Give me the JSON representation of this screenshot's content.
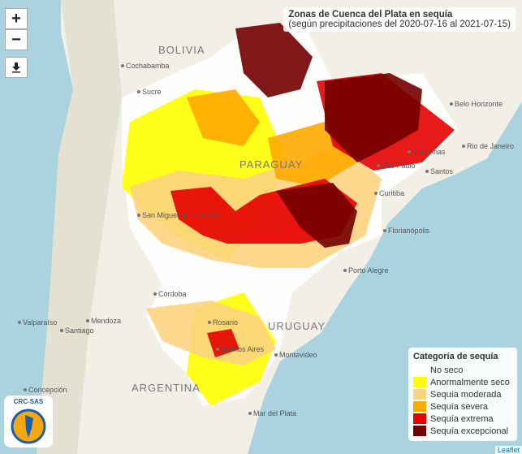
{
  "title": "Zonas de Cuenca del Plata en sequía",
  "subtitle": "(según precipitaciones del 2020-07-16 al 2021-07-15)",
  "controls": {
    "zoom_in": "+",
    "zoom_out": "−"
  },
  "legend": {
    "title": "Categoría de sequía",
    "items": [
      {
        "label": "No seco",
        "color": "#ffffff"
      },
      {
        "label": "Anormalmente seco",
        "color": "#ffff00"
      },
      {
        "label": "Sequía moderada",
        "color": "#fcd37f"
      },
      {
        "label": "Sequía severa",
        "color": "#ffaa00"
      },
      {
        "label": "Sequía extrema",
        "color": "#e60000"
      },
      {
        "label": "Sequía excepcional",
        "color": "#730000"
      }
    ]
  },
  "places": [
    {
      "label": "BOLIVIA",
      "kind": "country"
    },
    {
      "label": "Cochabamba",
      "kind": "city"
    },
    {
      "label": "Sucre",
      "kind": "city"
    },
    {
      "label": "PARAGUAY",
      "kind": "country"
    },
    {
      "label": "Belo Horizonte",
      "kind": "city"
    },
    {
      "label": "Rio de Janeiro",
      "kind": "city"
    },
    {
      "label": "Campinas",
      "kind": "city"
    },
    {
      "label": "São Paulo",
      "kind": "city"
    },
    {
      "label": "Santos",
      "kind": "city"
    },
    {
      "label": "Curitiba",
      "kind": "city"
    },
    {
      "label": "Florianópolis",
      "kind": "city"
    },
    {
      "label": "Porto Alegre",
      "kind": "city"
    },
    {
      "label": "San Miguel de Tucumán",
      "kind": "city"
    },
    {
      "label": "Córdoba",
      "kind": "city"
    },
    {
      "label": "Valparaíso",
      "kind": "city"
    },
    {
      "label": "Santiago",
      "kind": "city"
    },
    {
      "label": "Mendoza",
      "kind": "city"
    },
    {
      "label": "Rosario",
      "kind": "city"
    },
    {
      "label": "URUGUAY",
      "kind": "country"
    },
    {
      "label": "Buenos Aires",
      "kind": "city"
    },
    {
      "label": "Montevideo",
      "kind": "city"
    },
    {
      "label": "ARGENTINA",
      "kind": "country"
    },
    {
      "label": "Mar del Plata",
      "kind": "city"
    },
    {
      "label": "Concepción",
      "kind": "city"
    }
  ],
  "attribution": "Leaflet",
  "logo": "CRC-SAS"
}
